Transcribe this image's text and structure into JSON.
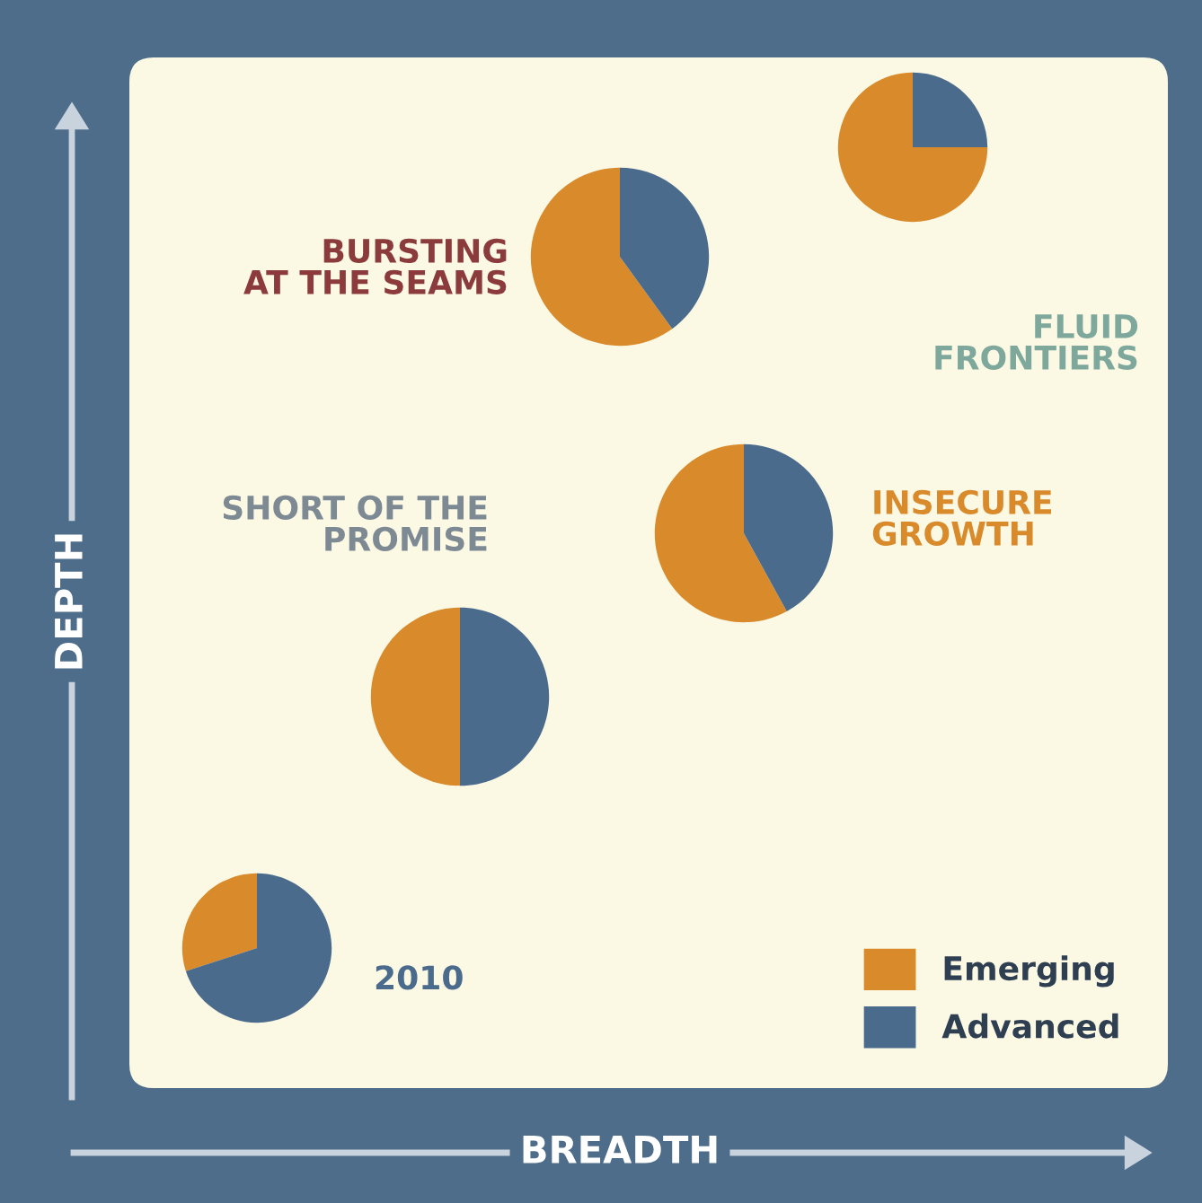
{
  "chart_data": [
    {
      "type": "pie",
      "title": "BURSTING\nAT THE SEAMS",
      "categories": [
        "Emerging",
        "Advanced"
      ],
      "values": [
        60,
        40
      ],
      "colors": [
        "#d98a2b",
        "#4a6b8c"
      ],
      "legend": "bottom right"
    },
    {
      "type": "pie",
      "title": "FLUID\nFRONTIERS",
      "categories": [
        null,
        null
      ],
      "values": [
        75,
        25
      ],
      "colors": [
        "#d98a2b",
        "#4a6b8c"
      ]
    },
    {
      "type": "pie",
      "title": "SHORT OF THE\nPROMISE",
      "categories": [
        null,
        null
      ],
      "values": [
        50,
        50
      ],
      "colors": [
        "#d98a2b",
        "#4a6b8c"
      ]
    },
    {
      "type": "pie",
      "title": "INSECURE\nGROWTH",
      "categories": [
        null,
        null
      ],
      "values": [
        58,
        42
      ],
      "colors": [
        "#d98a2b",
        "#4a6b8c"
      ]
    },
    {
      "type": "pie",
      "title": "2010",
      "categories": [
        null,
        null
      ],
      "values": [
        30,
        70
      ],
      "colors": [
        "#d98a2b",
        "#4a6b8c"
      ]
    },
    {
      "type": "other",
      "xlabel": "BREADTH",
      "ylabel": "DEPTH"
    }
  ]
}
